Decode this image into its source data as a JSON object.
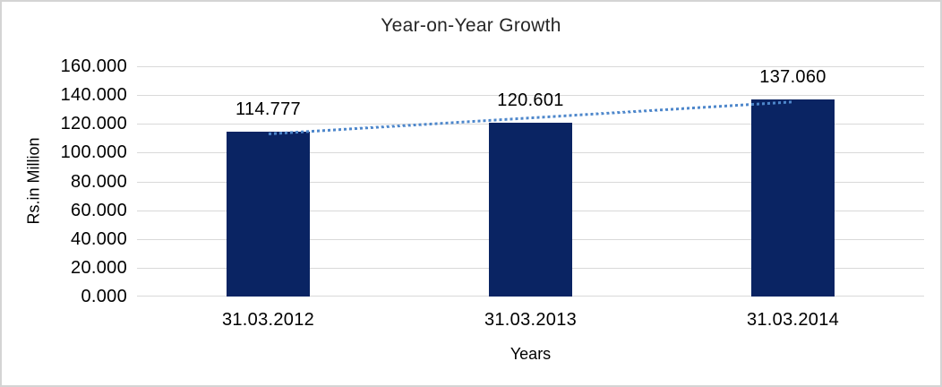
{
  "chart_data": {
    "type": "bar",
    "title": "Year-on-Year Growth",
    "xlabel": "Years",
    "ylabel": "Rs.in Million",
    "categories": [
      "31.03.2012",
      "31.03.2013",
      "31.03.2014"
    ],
    "series": [
      {
        "name": "Rs.in Million",
        "values": [
          114.777,
          120.601,
          137.06
        ]
      }
    ],
    "data_labels": [
      "114.777",
      "120.601",
      "137.060"
    ],
    "ylim": [
      0,
      160
    ],
    "ytick_interval": 20,
    "ytick_labels": [
      "0.000",
      "20.000",
      "40.000",
      "60.000",
      "80.000",
      "100.000",
      "120.000",
      "140.000",
      "160.000"
    ],
    "grid": "horizontal",
    "legend": "none",
    "trendline": {
      "type": "linear",
      "style": "dotted"
    },
    "colors": {
      "bar": "#0a2463",
      "trendline": "#4e87cb",
      "gridline": "#d9d9d9",
      "chart_border": "#d4d4d4",
      "text": "#000000"
    }
  }
}
